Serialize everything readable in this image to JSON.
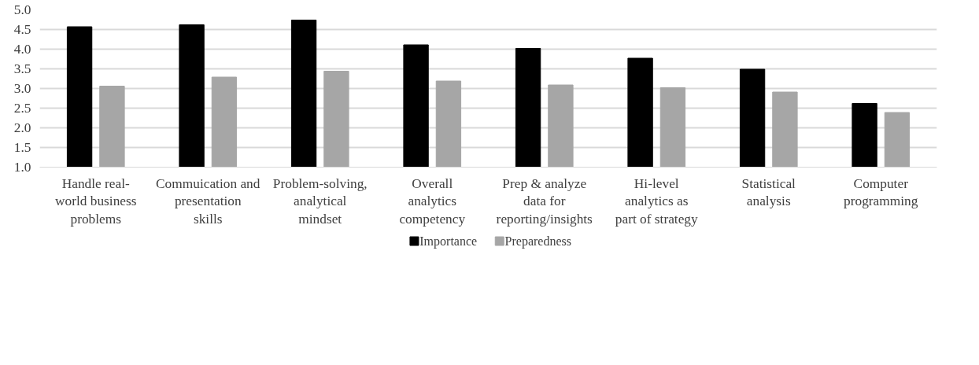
{
  "chart_data": {
    "type": "bar",
    "categories": [
      "Handle real-world business problems",
      "Commuication and presentation skills",
      "Problem-solving, analytical mindset",
      "Overall analytics competency",
      "Prep & analyze data for reporting/insights",
      "Hi-level analytics as part of strategy",
      "Statistical analysis",
      "Computer programming"
    ],
    "series": [
      {
        "name": "Importance",
        "color": "#000000",
        "values": [
          4.57,
          4.62,
          4.74,
          4.11,
          4.02,
          3.77,
          3.49,
          2.62
        ]
      },
      {
        "name": "Preparedness",
        "color": "#a6a6a6",
        "values": [
          3.06,
          3.29,
          3.44,
          3.19,
          3.09,
          3.02,
          2.91,
          2.39
        ]
      }
    ],
    "ylim": [
      1.0,
      5.0
    ],
    "yticks": [
      {
        "value": 1.0,
        "label": "1.0"
      },
      {
        "value": 1.5,
        "label": "1.5"
      },
      {
        "value": 2.0,
        "label": "2.0"
      },
      {
        "value": 2.5,
        "label": "2.5"
      },
      {
        "value": 3.0,
        "label": "3.0"
      },
      {
        "value": 3.5,
        "label": "3.5"
      },
      {
        "value": 4.0,
        "label": "4.0"
      },
      {
        "value": 4.5,
        "label": "4.5"
      },
      {
        "value": 5.0,
        "label": "5.0"
      }
    ],
    "grid": "y",
    "legend": "bottom"
  }
}
